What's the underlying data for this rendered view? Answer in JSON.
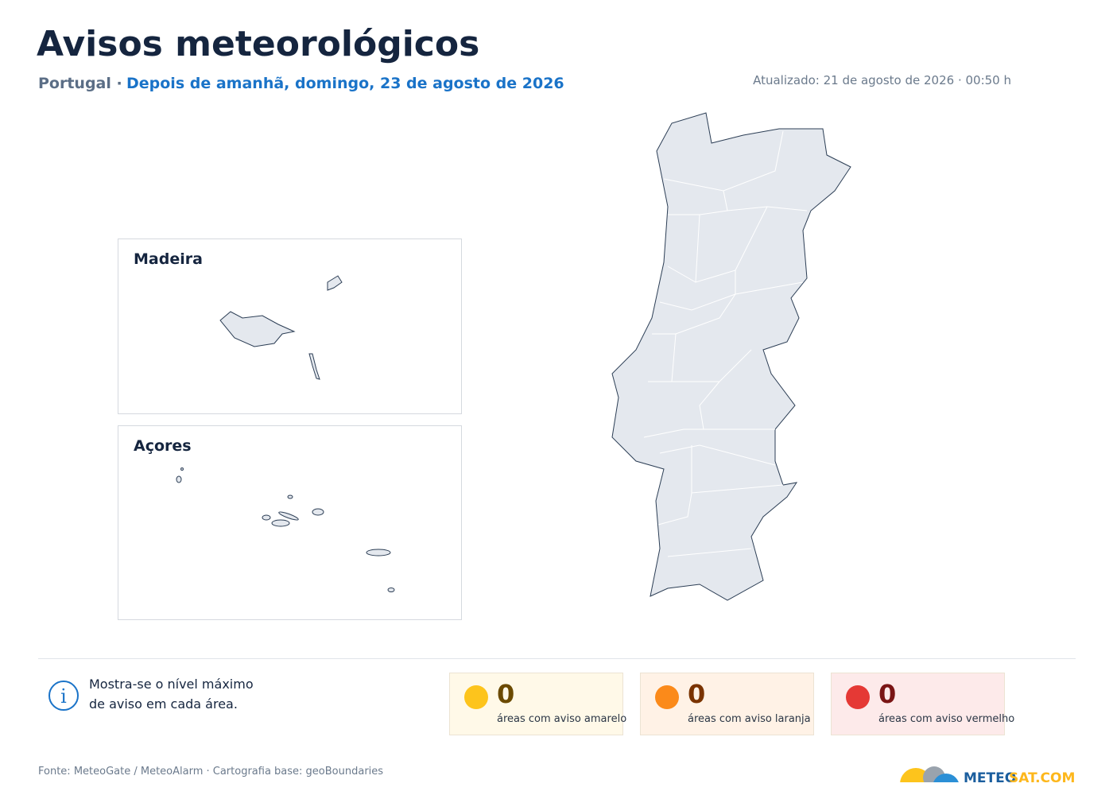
{
  "header": {
    "title": "Avisos meteorológicos",
    "region": "Portugal ·",
    "date": "Depois de amanhã, domingo, 23 de agosto de 2026",
    "updated": "Atualizado: 21 de agosto de 2026 · 00:50 h"
  },
  "insets": [
    {
      "label": "Madeira"
    },
    {
      "label": "Açores"
    }
  ],
  "info": {
    "lines": [
      "Mostra-se o nível máximo",
      "de aviso em cada área."
    ]
  },
  "summary": [
    {
      "count": 0,
      "label": "áreas com aviso amarelo",
      "color": "#fdc41c",
      "background": "#fff9e8",
      "text_color": "#6b4a00"
    },
    {
      "count": 0,
      "label": "áreas com aviso laranja",
      "color": "#fb8a1a",
      "background": "#fff2e6",
      "text_color": "#7a3300"
    },
    {
      "count": 0,
      "label": "áreas com aviso vermelho",
      "color": "#e53935",
      "background": "#fdeaea",
      "text_color": "#7a1515"
    }
  ],
  "footer": {
    "source": "Fonte: MeteoGate / MeteoAlarm · Cartografia base: geoBoundaries",
    "logo": [
      "METEO",
      "SAT.COM"
    ]
  }
}
